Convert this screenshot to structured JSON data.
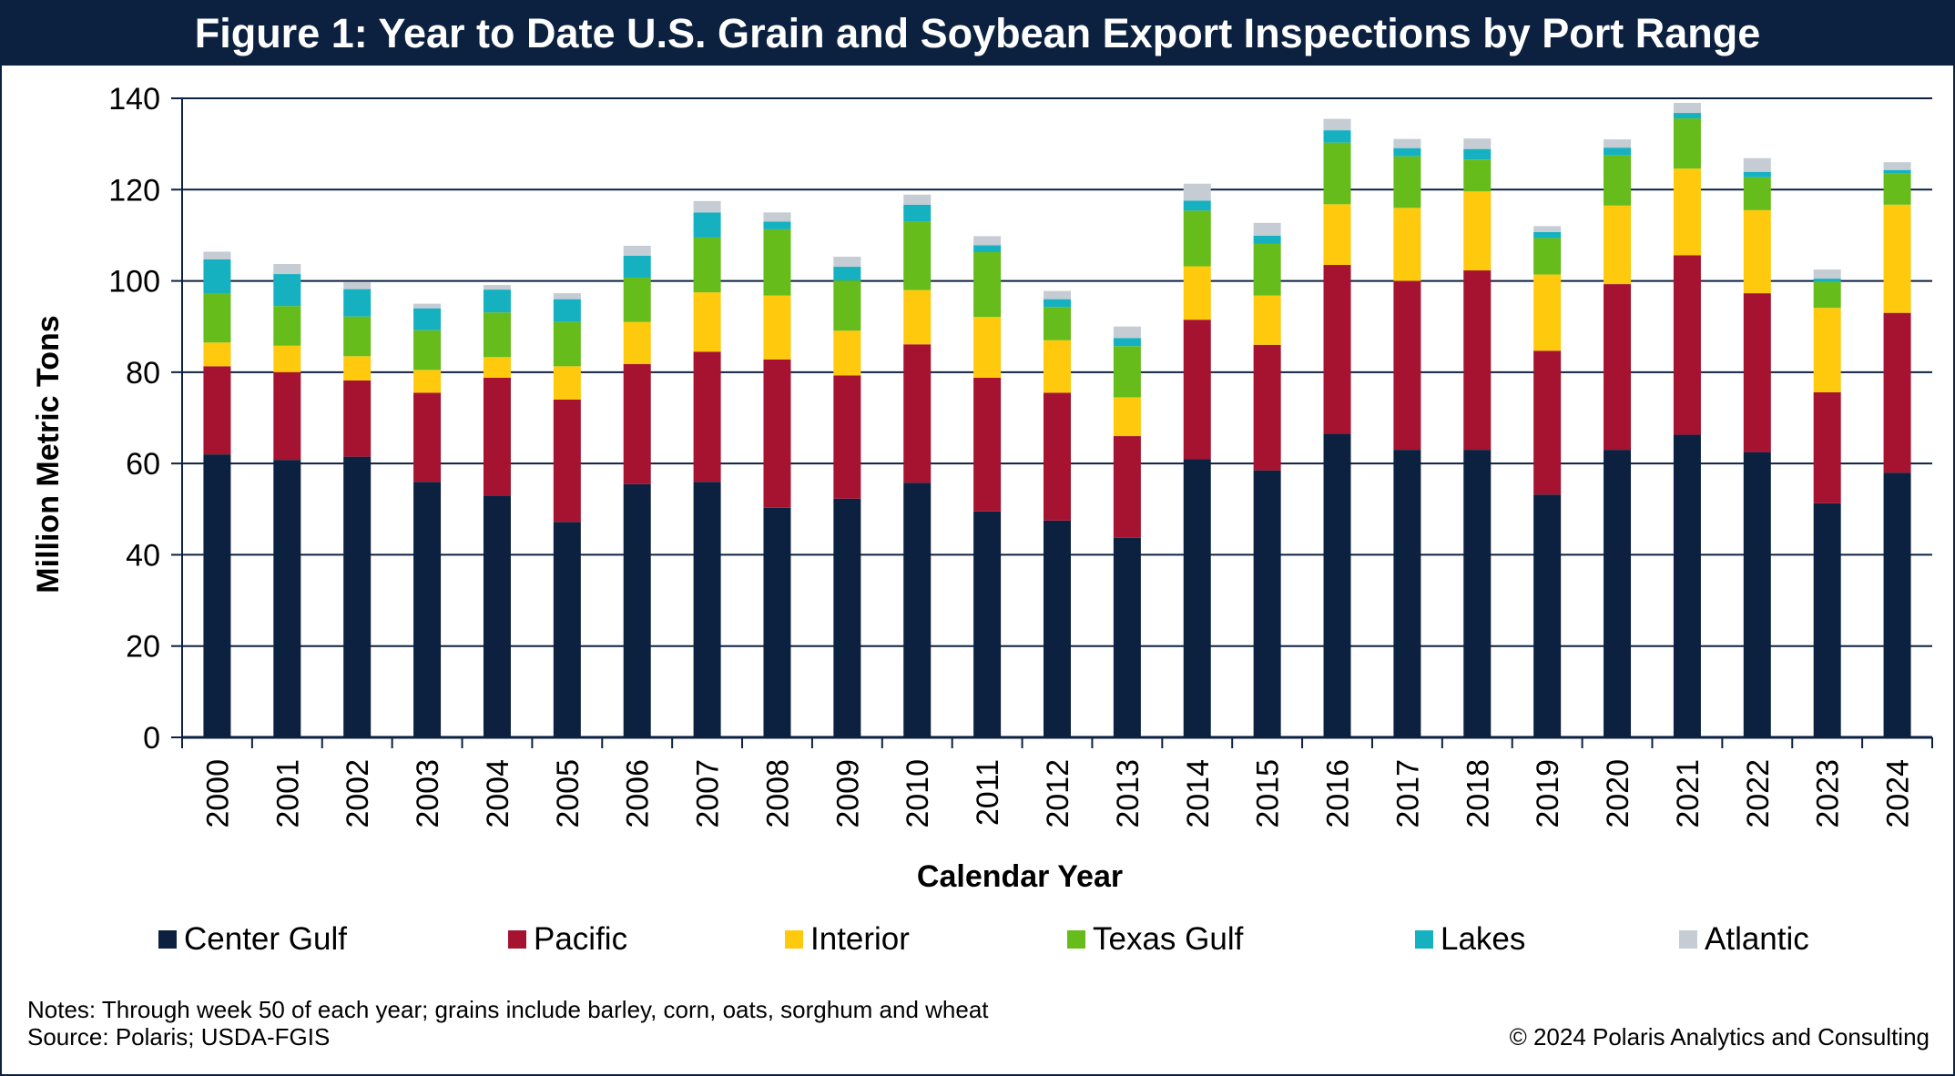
{
  "header": {
    "title": "Figure 1: Year to Date U.S. Grain and Soybean Export Inspections by Port Range"
  },
  "notes": {
    "line1": "Notes: Through week 50 of each year; grains include barley, corn, oats, sorghum and wheat",
    "line2": "Source: Polaris; USDA-FGIS",
    "copyright": "© 2024 Polaris Analytics and Consulting"
  },
  "colors": {
    "title_bar": "#0c2140",
    "grid": "#0c2140"
  },
  "chart_data": {
    "type": "bar",
    "stacked": true,
    "title": "Figure 1: Year to Date U.S. Grain and Soybean Export Inspections by Port Range",
    "xlabel": "Calendar Year",
    "ylabel": "Million Metric Tons",
    "ylim": [
      0,
      140
    ],
    "yticks": [
      0,
      20,
      40,
      60,
      80,
      100,
      120,
      140
    ],
    "grid": true,
    "legend_position": "bottom",
    "categories": [
      "2000",
      "2001",
      "2002",
      "2003",
      "2004",
      "2005",
      "2006",
      "2007",
      "2008",
      "2009",
      "2010",
      "2011",
      "2012",
      "2013",
      "2014",
      "2015",
      "2016",
      "2017",
      "2018",
      "2019",
      "2020",
      "2021",
      "2022",
      "2023",
      "2024"
    ],
    "series": [
      {
        "name": "Center Gulf",
        "color": "#0c2140",
        "values": [
          62.0,
          60.8,
          61.5,
          56.0,
          53.0,
          47.2,
          55.5,
          56.0,
          50.3,
          52.3,
          55.8,
          49.5,
          47.5,
          43.7,
          61.0,
          58.5,
          66.5,
          63.0,
          63.0,
          53.2,
          63.0,
          66.3,
          62.5,
          51.3,
          58.0
        ]
      },
      {
        "name": "Pacific",
        "color": "#a61331",
        "values": [
          19.3,
          19.2,
          16.7,
          19.5,
          25.8,
          26.8,
          26.3,
          28.5,
          32.5,
          27.0,
          30.3,
          29.3,
          28.0,
          22.3,
          30.5,
          27.5,
          37.0,
          37.0,
          39.3,
          31.5,
          36.3,
          39.3,
          34.8,
          24.3,
          35.0
        ]
      },
      {
        "name": "Interior",
        "color": "#ffc90e",
        "values": [
          5.2,
          5.8,
          5.3,
          5.0,
          4.5,
          7.3,
          9.2,
          13.0,
          14.0,
          9.8,
          11.9,
          13.3,
          11.5,
          8.5,
          11.7,
          10.8,
          13.3,
          16.0,
          17.3,
          16.7,
          17.2,
          19.0,
          18.2,
          18.5,
          23.7
        ]
      },
      {
        "name": "Texas Gulf",
        "color": "#65bc1a",
        "values": [
          10.7,
          8.7,
          8.7,
          8.7,
          9.8,
          9.7,
          9.7,
          12.0,
          14.5,
          11.0,
          15.0,
          14.2,
          7.3,
          11.2,
          12.2,
          11.3,
          13.5,
          11.3,
          7.0,
          8.0,
          11.0,
          11.0,
          7.2,
          5.7,
          6.8
        ]
      },
      {
        "name": "Lakes",
        "color": "#16b1c1",
        "values": [
          7.5,
          7.0,
          6.0,
          4.8,
          5.0,
          5.0,
          4.8,
          5.5,
          1.7,
          3.0,
          3.7,
          1.5,
          1.7,
          1.8,
          2.2,
          1.8,
          2.7,
          1.8,
          2.3,
          1.3,
          1.7,
          1.2,
          1.2,
          0.7,
          0.8
        ]
      },
      {
        "name": "Atlantic",
        "color": "#c6ccd4",
        "values": [
          1.7,
          2.2,
          1.5,
          1.0,
          1.0,
          1.3,
          2.2,
          2.5,
          2.0,
          2.2,
          2.2,
          2.0,
          1.8,
          2.5,
          3.7,
          2.8,
          2.5,
          2.0,
          2.3,
          1.3,
          1.8,
          2.2,
          3.0,
          2.0,
          1.7
        ]
      }
    ]
  }
}
